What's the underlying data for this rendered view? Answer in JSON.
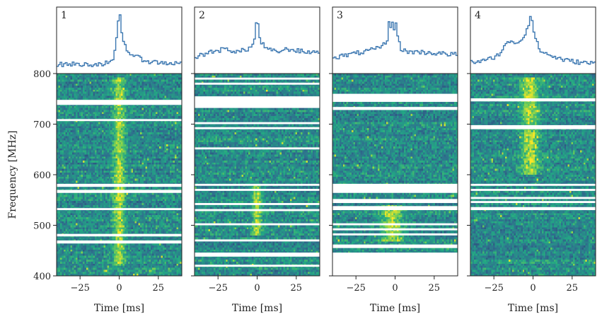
{
  "chart_data": {
    "type": "heatmap",
    "ylabel": "Frequency [MHz]",
    "xlabel": "Time [ms]",
    "xlim": [
      -40,
      40
    ],
    "ylim": [
      400,
      800
    ],
    "x_ticks": [
      -25,
      0,
      25
    ],
    "y_ticks": [
      400,
      500,
      600,
      700,
      800
    ],
    "colormap": [
      "#2b1b5a",
      "#2f6f8e",
      "#22a884",
      "#7ad151",
      "#fde725"
    ],
    "profile_color": "#3a76b0",
    "panels": [
      {
        "label": "1",
        "burst_time_ms": 0,
        "burst_width_ms": 2.5,
        "burst_band_mhz": [
          420,
          790
        ],
        "profile": {
          "x": [
            -40,
            -30,
            -20,
            -10,
            -4,
            -2,
            -1,
            0,
            1,
            2,
            4,
            6,
            10,
            15,
            20,
            30,
            40
          ],
          "y": [
            0.08,
            0.09,
            0.08,
            0.1,
            0.12,
            0.4,
            0.75,
            1.0,
            0.85,
            0.55,
            0.4,
            0.3,
            0.22,
            0.17,
            0.13,
            0.11,
            0.1
          ]
        },
        "flagged_mhz": [
          [
            738,
            748
          ],
          [
            706,
            710
          ],
          [
            576,
            582
          ],
          [
            564,
            570
          ],
          [
            530,
            534
          ],
          [
            478,
            483
          ],
          [
            464,
            470
          ]
        ]
      },
      {
        "label": "2",
        "burst_time_ms": 0,
        "burst_width_ms": 2.0,
        "burst_band_mhz": [
          480,
          580
        ],
        "profile": {
          "x": [
            -40,
            -30,
            -20,
            -12,
            -6,
            -3,
            -1,
            0,
            1,
            3,
            6,
            12,
            20,
            30,
            40
          ],
          "y": [
            0.2,
            0.3,
            0.35,
            0.3,
            0.35,
            0.4,
            0.6,
            1.0,
            0.6,
            0.45,
            0.35,
            0.3,
            0.35,
            0.3,
            0.3
          ]
        },
        "flagged_mhz": [
          [
            788,
            792
          ],
          [
            778,
            782
          ],
          [
            732,
            755
          ],
          [
            700,
            704
          ],
          [
            690,
            694
          ],
          [
            650,
            654
          ],
          [
            578,
            582
          ],
          [
            568,
            572
          ],
          [
            540,
            544
          ],
          [
            528,
            532
          ],
          [
            500,
            504
          ],
          [
            468,
            472
          ],
          [
            438,
            446
          ],
          [
            418,
            422
          ]
        ]
      },
      {
        "label": "3",
        "burst_time_ms": -2,
        "burst_width_ms": 5.0,
        "burst_band_mhz": [
          470,
          540
        ],
        "profile": {
          "x": [
            -40,
            -30,
            -20,
            -12,
            -8,
            -5,
            -4,
            -3,
            -2,
            -1,
            0,
            1,
            2,
            4,
            8,
            15,
            25,
            40
          ],
          "y": [
            0.2,
            0.25,
            0.3,
            0.35,
            0.4,
            0.5,
            0.85,
            0.6,
            1.0,
            0.55,
            0.9,
            0.7,
            0.5,
            0.35,
            0.3,
            0.3,
            0.28,
            0.25
          ]
        },
        "flagged_mhz": [
          [
            744,
            760
          ],
          [
            728,
            734
          ],
          [
            564,
            582
          ],
          [
            544,
            552
          ],
          [
            530,
            538
          ],
          [
            500,
            504
          ],
          [
            490,
            494
          ],
          [
            480,
            484
          ],
          [
            455,
            462
          ],
          [
            400,
            446
          ]
        ]
      },
      {
        "label": "4",
        "burst_time_ms": -2,
        "burst_width_ms": 4.0,
        "burst_band_mhz": [
          600,
          790
        ],
        "profile": {
          "x": [
            -40,
            -30,
            -22,
            -18,
            -14,
            -10,
            -6,
            -4,
            -2,
            -1,
            0,
            2,
            4,
            6,
            10,
            15,
            22,
            30,
            40
          ],
          "y": [
            0.12,
            0.15,
            0.25,
            0.4,
            0.5,
            0.45,
            0.55,
            0.7,
            0.85,
            1.0,
            0.7,
            0.5,
            0.35,
            0.3,
            0.25,
            0.2,
            0.15,
            0.12,
            0.1
          ]
        },
        "flagged_mhz": [
          [
            745,
            751
          ],
          [
            690,
            698
          ],
          [
            578,
            582
          ],
          [
            568,
            572
          ],
          [
            552,
            556
          ],
          [
            544,
            548
          ],
          [
            530,
            536
          ]
        ]
      }
    ]
  }
}
